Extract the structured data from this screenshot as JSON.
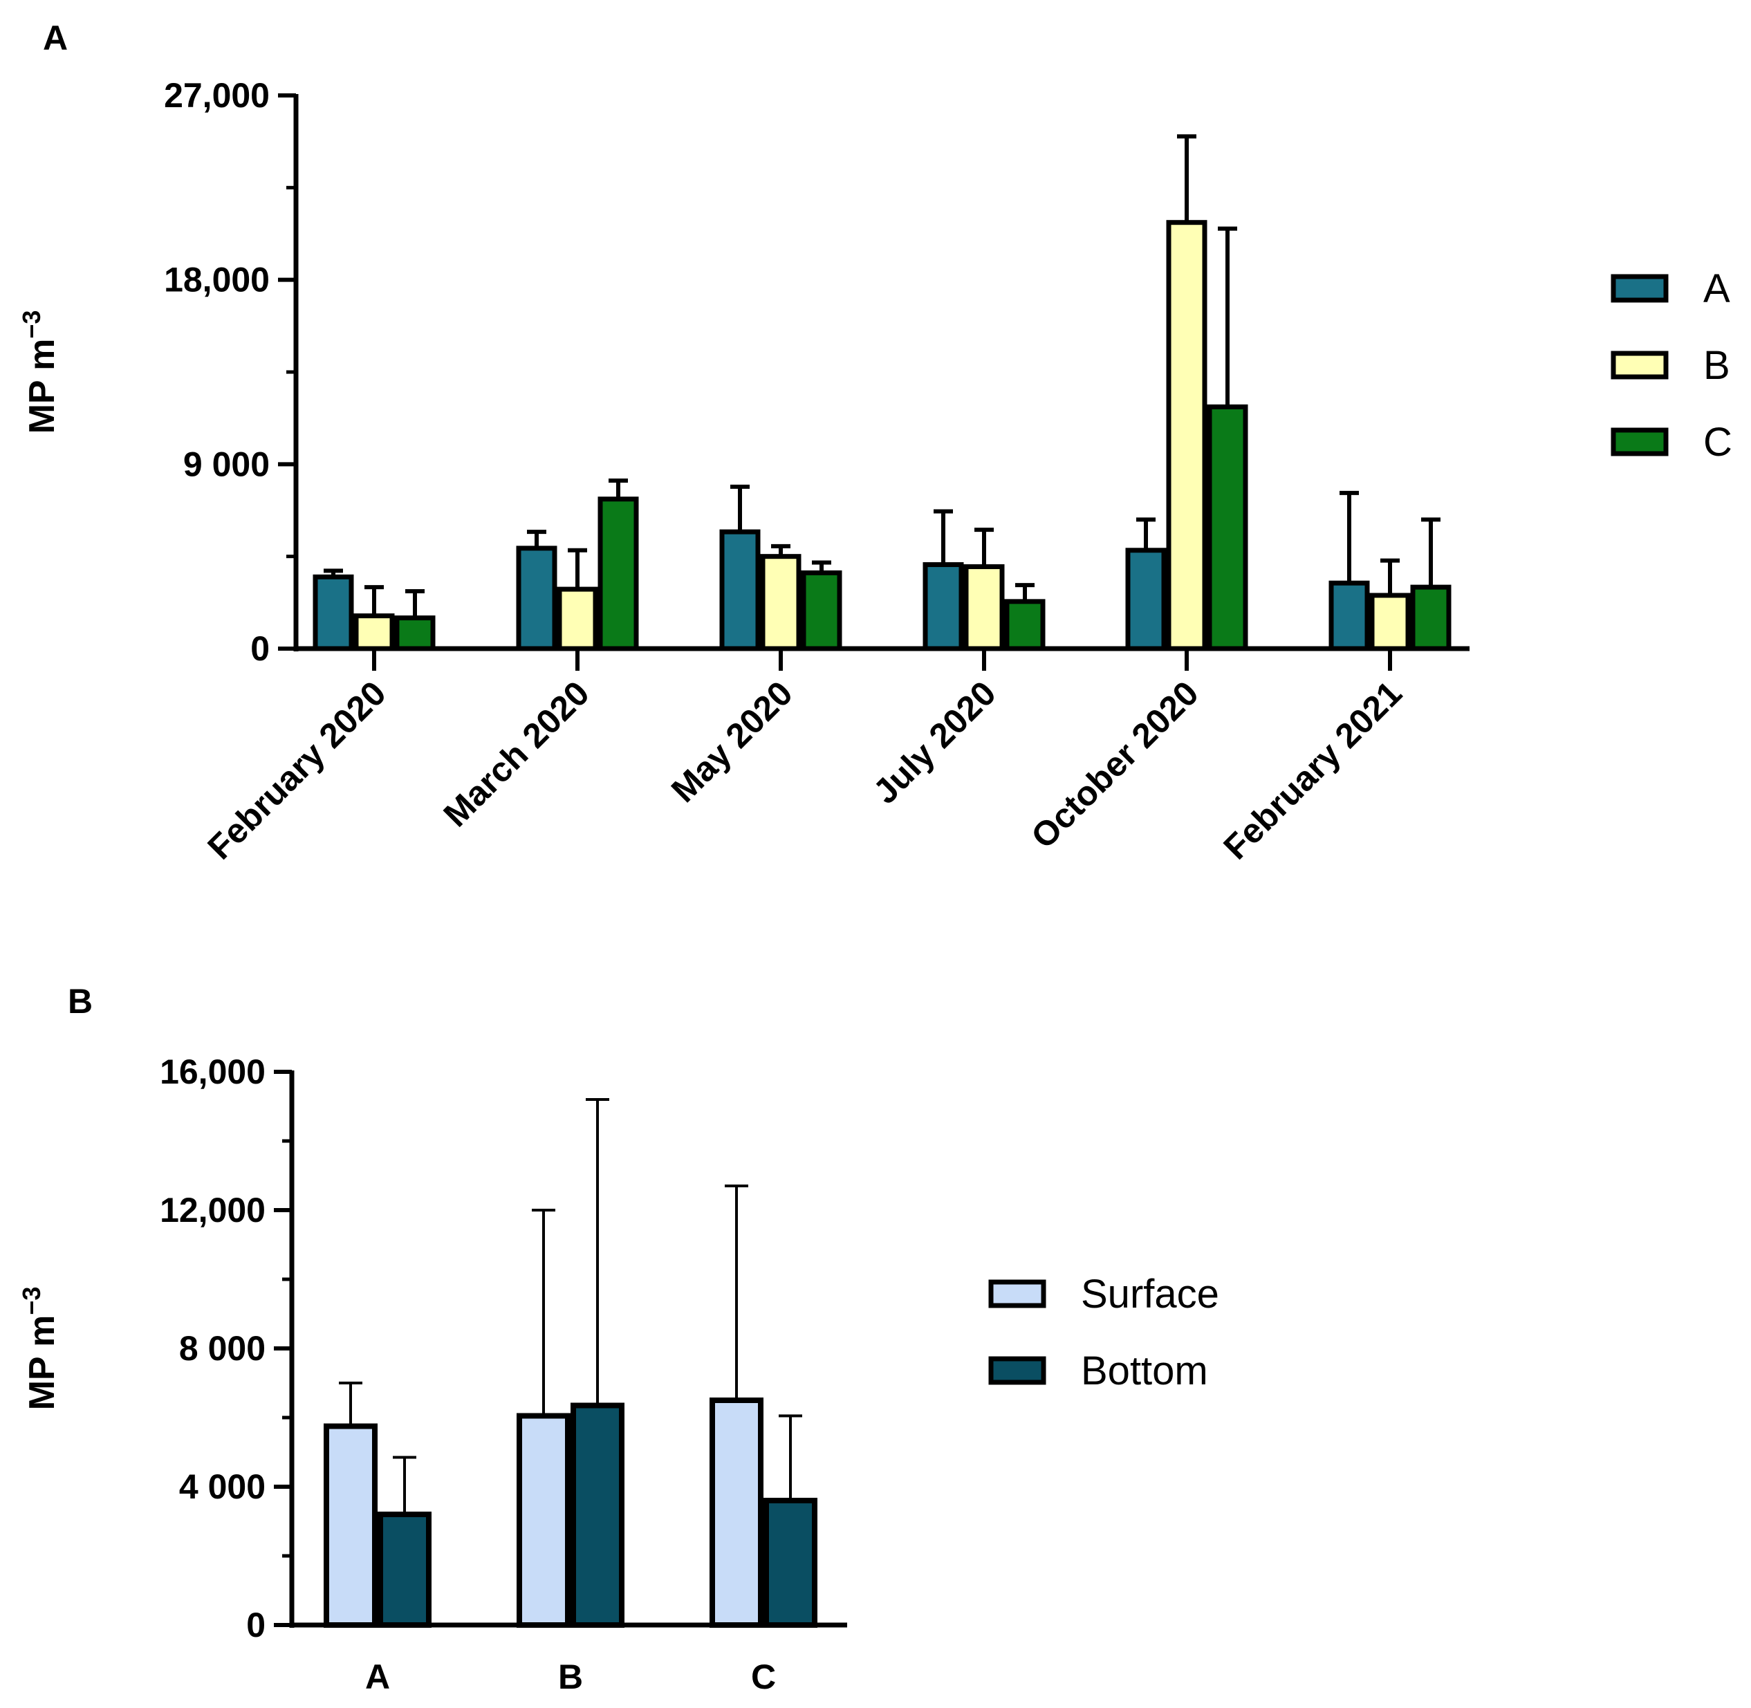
{
  "figure": {
    "panel_a_label": "A",
    "panel_b_label": "B"
  },
  "colors": {
    "series_a": "#1a7187",
    "series_b": "#ffffb5",
    "series_c": "#0a7a18",
    "surface": "#c8dcf8",
    "bottom": "#0a4e62",
    "stroke": "#000000"
  },
  "chart_data": [
    {
      "type": "bar",
      "panel": "A",
      "ylabel": "MP m",
      "ylabel_superscript": "−3",
      "ylim": [
        0,
        27000
      ],
      "yticks": [
        0,
        9000,
        18000,
        27000
      ],
      "ytick_labels": [
        "0",
        "9 000",
        "18,000",
        "27,000"
      ],
      "minor_tick_step": 4500,
      "categories": [
        "February 2020",
        "March 2020",
        "May 2020",
        "July 2020",
        "October 2020",
        "February 2021"
      ],
      "series": [
        {
          "name": "A",
          "color_key": "series_a",
          "values": [
            3500,
            4900,
            5700,
            4100,
            4800,
            3200
          ],
          "errors": [
            3800,
            5700,
            7900,
            6700,
            6300,
            7600
          ]
        },
        {
          "name": "B",
          "color_key": "series_b",
          "values": [
            1600,
            2900,
            4500,
            4000,
            20800,
            2600
          ],
          "errors": [
            3000,
            4800,
            5000,
            5800,
            25000,
            4300
          ]
        },
        {
          "name": "C",
          "color_key": "series_c",
          "values": [
            1500,
            7300,
            3700,
            2300,
            11800,
            3000
          ],
          "errors": [
            2800,
            8200,
            4200,
            3100,
            20500,
            6300
          ]
        }
      ],
      "legend": {
        "position": "right",
        "entries": [
          "A",
          "B",
          "C"
        ]
      }
    },
    {
      "type": "bar",
      "panel": "B",
      "ylabel": "MP m",
      "ylabel_superscript": "−3",
      "ylim": [
        0,
        16000
      ],
      "yticks": [
        0,
        4000,
        8000,
        12000,
        16000
      ],
      "ytick_labels": [
        "0",
        "4 000",
        "8 000",
        "12,000",
        "16,000"
      ],
      "minor_tick_step": 2000,
      "categories": [
        "A",
        "B",
        "C"
      ],
      "series": [
        {
          "name": "Surface",
          "color_key": "surface",
          "values": [
            5750,
            6050,
            6500
          ],
          "errors": [
            7000,
            12000,
            12700
          ]
        },
        {
          "name": "Bottom",
          "color_key": "bottom",
          "values": [
            3200,
            6350,
            3600
          ],
          "errors": [
            4850,
            15200,
            6050
          ]
        }
      ],
      "legend": {
        "position": "right",
        "entries": [
          "Surface",
          "Bottom"
        ]
      }
    }
  ]
}
